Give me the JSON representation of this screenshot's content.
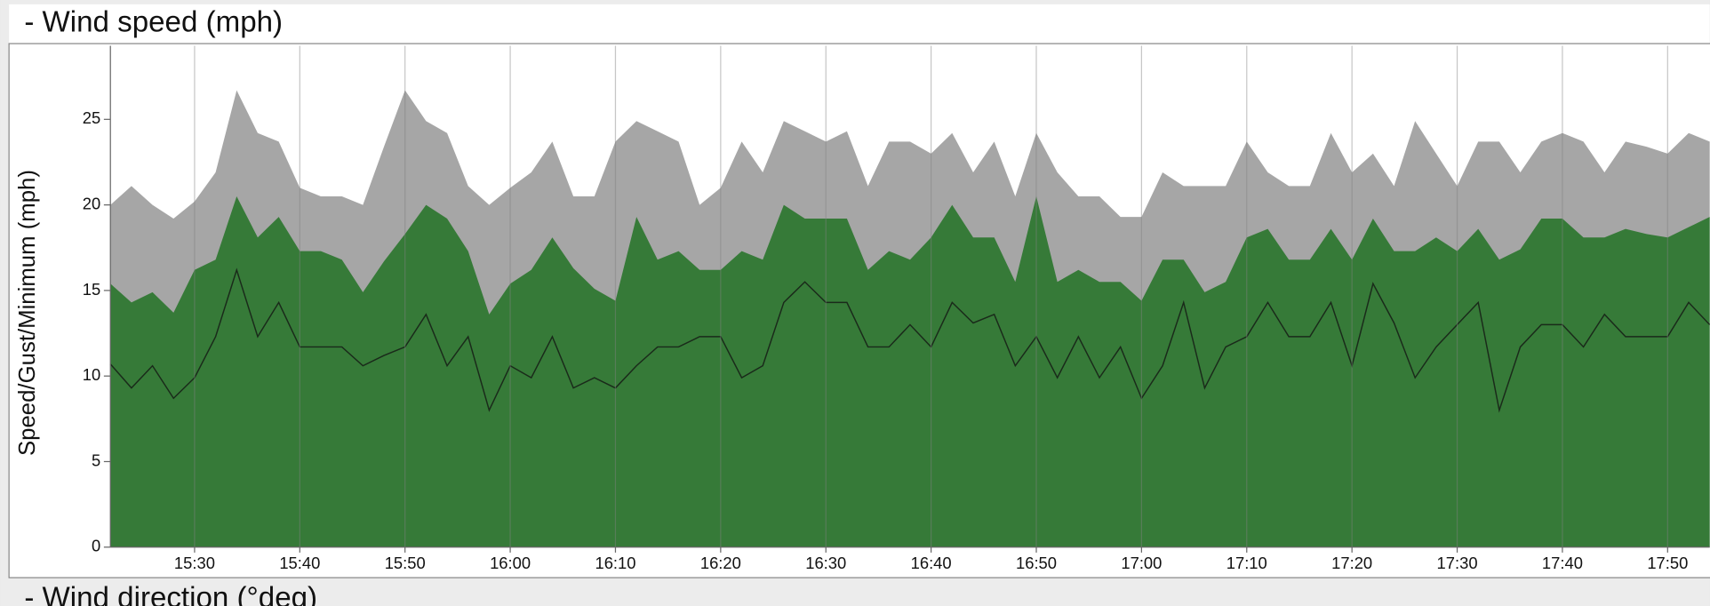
{
  "chart_data": {
    "type": "area",
    "title": "- Wind speed (mph)",
    "next_section_title": "- Wind direction (°deg)",
    "ylabel": "Speed/Gust/Minimum (mph)",
    "x": [
      "15:22",
      "15:24",
      "15:26",
      "15:28",
      "15:30",
      "15:32",
      "15:34",
      "15:36",
      "15:38",
      "15:40",
      "15:42",
      "15:44",
      "15:46",
      "15:48",
      "15:50",
      "15:52",
      "15:54",
      "15:56",
      "15:58",
      "16:00",
      "16:02",
      "16:04",
      "16:06",
      "16:08",
      "16:10",
      "16:12",
      "16:14",
      "16:16",
      "16:18",
      "16:20",
      "16:22",
      "16:24",
      "16:26",
      "16:28",
      "16:30",
      "16:32",
      "16:34",
      "16:36",
      "16:38",
      "16:40",
      "16:42",
      "16:44",
      "16:46",
      "16:48",
      "16:50",
      "16:52",
      "16:54",
      "16:56",
      "16:58",
      "17:00",
      "17:02",
      "17:04",
      "17:06",
      "17:08",
      "17:10",
      "17:12",
      "17:14",
      "17:16",
      "17:18",
      "17:20",
      "17:22",
      "17:24",
      "17:26",
      "17:28",
      "17:30",
      "17:32",
      "17:34",
      "17:36",
      "17:38",
      "17:40",
      "17:42",
      "17:44",
      "17:46",
      "17:48",
      "17:50",
      "17:52",
      "17:54"
    ],
    "xlim": [
      "15:22",
      "17:54"
    ],
    "xticks": [
      "15:30",
      "15:40",
      "15:50",
      "16:00",
      "16:10",
      "16:20",
      "16:30",
      "16:40",
      "16:50",
      "17:00",
      "17:10",
      "17:20",
      "17:30",
      "17:40",
      "17:50"
    ],
    "ylim": [
      0,
      29.3
    ],
    "yticks": [
      0,
      5,
      10,
      15,
      20,
      25
    ],
    "grid": "x",
    "series": [
      {
        "color": "#a6a6a6",
        "style": "area",
        "values": [
          20.0,
          21.1,
          20.0,
          19.2,
          20.2,
          21.9,
          26.7,
          24.2,
          23.7,
          21.0,
          20.5,
          20.5,
          20.0,
          23.4,
          26.7,
          24.9,
          24.2,
          21.1,
          20.0,
          21.0,
          21.9,
          23.7,
          20.5,
          20.5,
          23.7,
          24.9,
          24.3,
          23.7,
          20.0,
          21.0,
          23.7,
          21.9,
          24.9,
          24.3,
          23.7,
          24.3,
          21.1,
          23.7,
          23.7,
          23.0,
          24.2,
          21.9,
          23.7,
          20.5,
          24.2,
          21.9,
          20.5,
          20.5,
          19.3,
          19.3,
          21.9,
          21.1,
          21.1,
          21.1,
          23.7,
          21.9,
          21.1,
          21.1,
          24.2,
          21.9,
          23.0,
          21.1,
          24.9,
          23.0,
          21.1,
          23.7,
          23.7,
          21.9,
          23.7,
          24.2,
          23.7,
          21.9,
          23.7,
          23.4,
          23.0,
          24.2,
          23.7
        ]
      },
      {
        "color": "#367a38",
        "style": "area",
        "values": [
          15.4,
          14.3,
          14.9,
          13.7,
          16.2,
          16.8,
          20.5,
          18.1,
          19.3,
          17.3,
          17.3,
          16.8,
          14.9,
          16.7,
          18.3,
          20.0,
          19.2,
          17.3,
          13.6,
          15.4,
          16.2,
          18.1,
          16.3,
          15.1,
          14.4,
          19.3,
          16.8,
          17.3,
          16.2,
          16.2,
          17.3,
          16.8,
          20.0,
          19.2,
          19.2,
          19.2,
          16.2,
          17.3,
          16.8,
          18.1,
          20.0,
          18.1,
          18.1,
          15.5,
          20.5,
          15.5,
          16.2,
          15.5,
          15.5,
          14.4,
          16.8,
          16.8,
          14.9,
          15.5,
          18.1,
          18.6,
          16.8,
          16.8,
          18.6,
          16.8,
          19.2,
          17.3,
          17.3,
          18.1,
          17.3,
          18.6,
          16.8,
          17.4,
          19.2,
          19.2,
          18.1,
          18.1,
          18.6,
          18.3,
          18.1,
          18.7,
          19.3
        ]
      },
      {
        "color": "#1a2a1a",
        "style": "line",
        "values": [
          10.7,
          9.3,
          10.6,
          8.7,
          9.9,
          12.3,
          16.2,
          12.3,
          14.3,
          11.7,
          11.7,
          11.7,
          10.6,
          11.2,
          11.7,
          13.6,
          10.6,
          12.3,
          8.0,
          10.6,
          9.9,
          12.3,
          9.3,
          9.9,
          9.3,
          10.6,
          11.7,
          11.7,
          12.3,
          12.3,
          9.9,
          10.6,
          14.3,
          15.5,
          14.3,
          14.3,
          11.7,
          11.7,
          13.0,
          11.7,
          14.3,
          13.1,
          13.6,
          10.6,
          12.3,
          9.9,
          12.3,
          9.9,
          11.7,
          8.7,
          10.6,
          14.3,
          9.3,
          11.7,
          12.3,
          14.3,
          12.3,
          12.3,
          14.3,
          10.6,
          15.4,
          13.1,
          9.9,
          11.7,
          13.0,
          14.3,
          8.0,
          11.7,
          13.0,
          13.0,
          11.7,
          13.6,
          12.3,
          12.3,
          12.3,
          14.3,
          13.0
        ]
      }
    ]
  }
}
